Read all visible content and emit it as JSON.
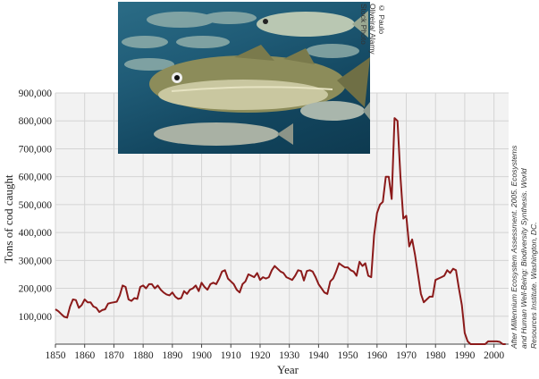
{
  "photo": {
    "credit": "© Paulo Oliveira/ Alamy Stock Photo"
  },
  "source_note": "After Millennium Ecosystem Assessment. 2005. Ecosystems and Human Well-Being: Biodiversity Synthesis. World Resources Institute. Washington, DC.",
  "chart_data": {
    "type": "line",
    "title": "",
    "xlabel": "Year",
    "ylabel": "Tons of cod caught",
    "xlim": [
      1850,
      2005
    ],
    "ylim": [
      0,
      900000
    ],
    "grid": true,
    "line_color": "#8b1a1a",
    "xticks": [
      "1850",
      "1860",
      "1870",
      "1880",
      "1890",
      "1900",
      "1910",
      "1920",
      "1930",
      "1940",
      "1950",
      "1960",
      "1970",
      "1980",
      "1990",
      "2000"
    ],
    "yticks": [
      "100,000",
      "200,000",
      "300,000",
      "400,000",
      "500,000",
      "600,000",
      "700,000",
      "800,000",
      "900,000"
    ],
    "series": [
      {
        "x": [
          1850,
          1851,
          1852,
          1853,
          1854,
          1855,
          1856,
          1857,
          1858,
          1859,
          1860,
          1861,
          1862,
          1863,
          1864,
          1865,
          1866,
          1867,
          1868,
          1869,
          1870,
          1871,
          1872,
          1873,
          1874,
          1875,
          1876,
          1877,
          1878,
          1879,
          1880,
          1881,
          1882,
          1883,
          1884,
          1885,
          1886,
          1887,
          1888,
          1889,
          1890,
          1891,
          1892,
          1893,
          1894,
          1895,
          1896,
          1897,
          1898,
          1899,
          1900,
          1901,
          1902,
          1903,
          1904,
          1905,
          1906,
          1907,
          1908,
          1909,
          1910,
          1911,
          1912,
          1913,
          1914,
          1915,
          1916,
          1917,
          1918,
          1919,
          1920,
          1921,
          1922,
          1923,
          1924,
          1925,
          1926,
          1927,
          1928,
          1929,
          1930,
          1931,
          1932,
          1933,
          1934,
          1935,
          1936,
          1937,
          1938,
          1939,
          1940,
          1941,
          1942,
          1943,
          1944,
          1945,
          1946,
          1947,
          1948,
          1949,
          1950,
          1951,
          1952,
          1953,
          1954,
          1955,
          1956,
          1957,
          1958,
          1959,
          1960,
          1961,
          1962,
          1963,
          1964,
          1965,
          1966,
          1967,
          1968,
          1969,
          1970,
          1971,
          1972,
          1973,
          1974,
          1975,
          1976,
          1977,
          1978,
          1979,
          1980,
          1981,
          1982,
          1983,
          1984,
          1985,
          1986,
          1987,
          1988,
          1989,
          1990,
          1991,
          1992,
          1993,
          1994,
          1995,
          1996,
          1997,
          1998,
          1999,
          2000,
          2001,
          2002,
          2003,
          2004
        ],
        "y": [
          125000,
          118000,
          108000,
          98000,
          95000,
          135000,
          160000,
          158000,
          130000,
          140000,
          160000,
          150000,
          150000,
          135000,
          130000,
          115000,
          122000,
          125000,
          145000,
          148000,
          150000,
          152000,
          175000,
          210000,
          205000,
          160000,
          155000,
          165000,
          162000,
          205000,
          210000,
          200000,
          215000,
          215000,
          200000,
          210000,
          195000,
          185000,
          178000,
          175000,
          185000,
          170000,
          162000,
          165000,
          190000,
          180000,
          195000,
          200000,
          210000,
          190000,
          220000,
          205000,
          195000,
          215000,
          220000,
          215000,
          235000,
          260000,
          265000,
          235000,
          225000,
          215000,
          195000,
          185000,
          215000,
          225000,
          250000,
          245000,
          240000,
          255000,
          230000,
          240000,
          235000,
          240000,
          265000,
          280000,
          270000,
          260000,
          255000,
          240000,
          235000,
          230000,
          245000,
          265000,
          262000,
          228000,
          262000,
          265000,
          260000,
          240000,
          215000,
          200000,
          185000,
          180000,
          225000,
          235000,
          260000,
          290000,
          282000,
          275000,
          275000,
          265000,
          260000,
          245000,
          295000,
          280000,
          290000,
          245000,
          240000,
          390000,
          470000,
          500000,
          510000,
          600000,
          600000,
          520000,
          810000,
          800000,
          600000,
          450000,
          460000,
          350000,
          375000,
          320000,
          250000,
          180000,
          150000,
          160000,
          170000,
          170000,
          230000,
          235000,
          240000,
          245000,
          265000,
          255000,
          270000,
          265000,
          200000,
          140000,
          40000,
          10000,
          0,
          0,
          0,
          0,
          0,
          0,
          10000,
          10000,
          10000,
          10000,
          8000,
          0,
          0
        ]
      }
    ]
  }
}
